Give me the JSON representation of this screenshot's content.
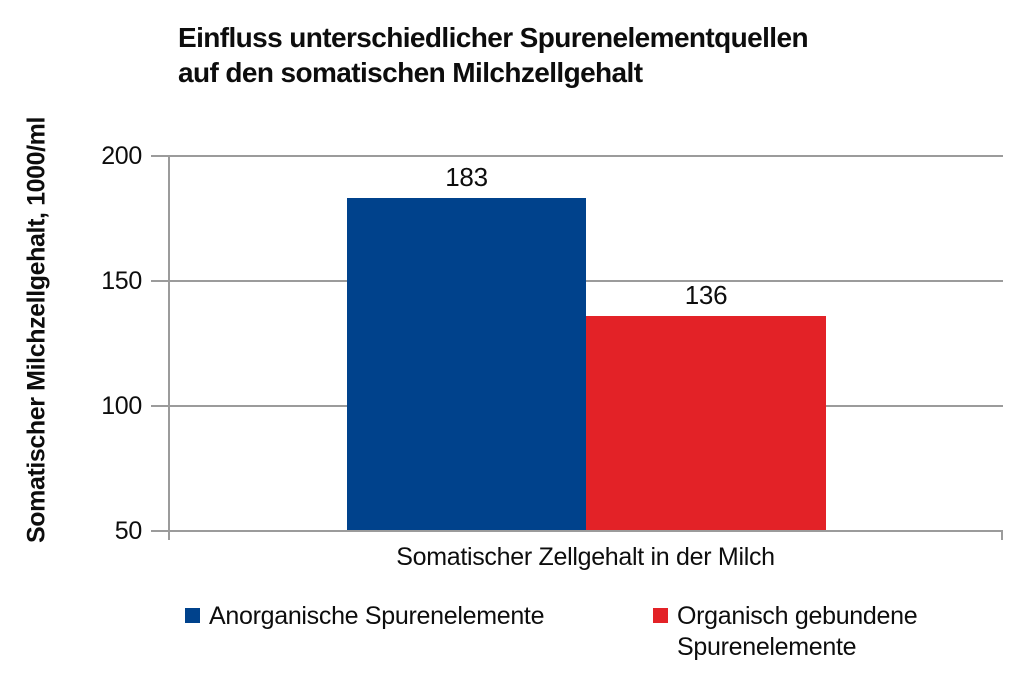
{
  "title_display": "Einfluss unterschiedlicher Spurenelementquellen\nauf den somatischen Milchzellgehalt",
  "chart_data": {
    "type": "bar",
    "title": "Einfluss unterschiedlicher Spurenelementquellen auf den somatischen Milchzellgehalt",
    "ylabel": "Somatischer Milchzellgehalt, 1000/ml",
    "xlabel": "",
    "categories": [
      "Somatischer Zellgehalt in der Milch"
    ],
    "series": [
      {
        "name": "Anorganische Spurenelemente",
        "values": [
          183
        ],
        "color": "#00428C"
      },
      {
        "name": "Organisch gebundene Spurenelemente",
        "values": [
          136
        ],
        "color": "#E32227"
      }
    ],
    "ylim": [
      50,
      200
    ],
    "yticks": [
      200,
      150,
      100,
      50
    ],
    "grid": "horizontal",
    "gridline_color": "#9B9B9B",
    "legend_position": "bottom"
  }
}
